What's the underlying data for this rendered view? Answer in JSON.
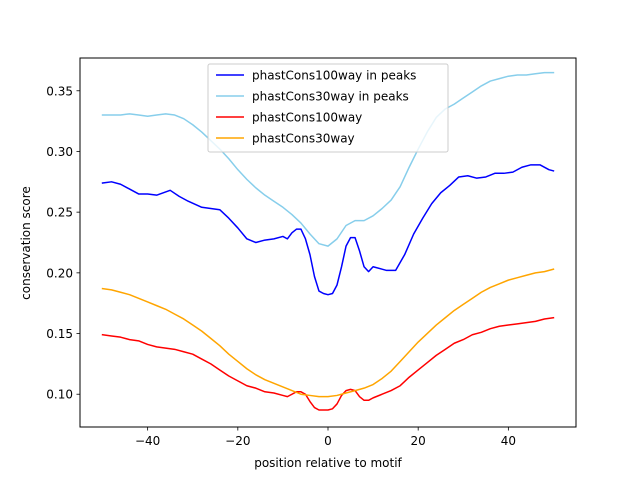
{
  "chart_data": {
    "type": "line",
    "title": "",
    "xlabel": "position relative to motif",
    "ylabel": "conservation score",
    "xlim": [
      -55,
      55
    ],
    "ylim": [
      0.073,
      0.377
    ],
    "xticks": [
      -40,
      -20,
      0,
      20,
      40
    ],
    "xtick_labels": [
      "−40",
      "−20",
      "0",
      "20",
      "40"
    ],
    "yticks": [
      0.1,
      0.15,
      0.2,
      0.25,
      0.3,
      0.35
    ],
    "ytick_labels": [
      "0.10",
      "0.15",
      "0.20",
      "0.25",
      "0.30",
      "0.35"
    ],
    "grid": false,
    "legend_position": "upper center",
    "series": [
      {
        "name": "phastCons100way in peaks",
        "color": "#0000ff",
        "points": [
          [
            -50,
            0.274
          ],
          [
            -48,
            0.275
          ],
          [
            -46,
            0.273
          ],
          [
            -44,
            0.269
          ],
          [
            -42,
            0.265
          ],
          [
            -40,
            0.265
          ],
          [
            -38,
            0.264
          ],
          [
            -35,
            0.268
          ],
          [
            -33,
            0.263
          ],
          [
            -31,
            0.259
          ],
          [
            -28,
            0.254
          ],
          [
            -26,
            0.253
          ],
          [
            -24,
            0.252
          ],
          [
            -22,
            0.245
          ],
          [
            -20,
            0.237
          ],
          [
            -18,
            0.228
          ],
          [
            -16,
            0.225
          ],
          [
            -14,
            0.227
          ],
          [
            -12,
            0.228
          ],
          [
            -10,
            0.23
          ],
          [
            -9,
            0.228
          ],
          [
            -8,
            0.233
          ],
          [
            -7,
            0.236
          ],
          [
            -6,
            0.236
          ],
          [
            -5,
            0.228
          ],
          [
            -4,
            0.215
          ],
          [
            -3,
            0.197
          ],
          [
            -2,
            0.185
          ],
          [
            -1,
            0.183
          ],
          [
            0,
            0.182
          ],
          [
            1,
            0.183
          ],
          [
            2,
            0.19
          ],
          [
            3,
            0.205
          ],
          [
            4,
            0.222
          ],
          [
            5,
            0.229
          ],
          [
            6,
            0.229
          ],
          [
            7,
            0.218
          ],
          [
            8,
            0.205
          ],
          [
            9,
            0.201
          ],
          [
            10,
            0.205
          ],
          [
            12,
            0.203
          ],
          [
            13,
            0.202
          ],
          [
            15,
            0.202
          ],
          [
            17,
            0.215
          ],
          [
            19,
            0.232
          ],
          [
            21,
            0.245
          ],
          [
            23,
            0.257
          ],
          [
            25,
            0.266
          ],
          [
            27,
            0.272
          ],
          [
            29,
            0.279
          ],
          [
            31,
            0.28
          ],
          [
            33,
            0.278
          ],
          [
            35,
            0.279
          ],
          [
            37,
            0.282
          ],
          [
            39,
            0.282
          ],
          [
            41,
            0.283
          ],
          [
            43,
            0.287
          ],
          [
            45,
            0.289
          ],
          [
            47,
            0.289
          ],
          [
            49,
            0.285
          ],
          [
            50,
            0.284
          ]
        ]
      },
      {
        "name": "phastCons30way in peaks",
        "color": "#87ceeb",
        "points": [
          [
            -50,
            0.33
          ],
          [
            -48,
            0.33
          ],
          [
            -46,
            0.33
          ],
          [
            -44,
            0.331
          ],
          [
            -42,
            0.33
          ],
          [
            -40,
            0.329
          ],
          [
            -38,
            0.33
          ],
          [
            -36,
            0.331
          ],
          [
            -34,
            0.33
          ],
          [
            -32,
            0.327
          ],
          [
            -30,
            0.322
          ],
          [
            -28,
            0.316
          ],
          [
            -26,
            0.309
          ],
          [
            -24,
            0.302
          ],
          [
            -22,
            0.294
          ],
          [
            -20,
            0.285
          ],
          [
            -18,
            0.277
          ],
          [
            -16,
            0.27
          ],
          [
            -14,
            0.264
          ],
          [
            -12,
            0.259
          ],
          [
            -10,
            0.254
          ],
          [
            -8,
            0.248
          ],
          [
            -6,
            0.241
          ],
          [
            -4,
            0.232
          ],
          [
            -2,
            0.224
          ],
          [
            0,
            0.222
          ],
          [
            2,
            0.228
          ],
          [
            4,
            0.239
          ],
          [
            6,
            0.243
          ],
          [
            8,
            0.243
          ],
          [
            10,
            0.247
          ],
          [
            12,
            0.253
          ],
          [
            14,
            0.26
          ],
          [
            16,
            0.271
          ],
          [
            18,
            0.287
          ],
          [
            20,
            0.302
          ],
          [
            22,
            0.316
          ],
          [
            24,
            0.328
          ],
          [
            26,
            0.335
          ],
          [
            28,
            0.339
          ],
          [
            30,
            0.344
          ],
          [
            32,
            0.349
          ],
          [
            34,
            0.354
          ],
          [
            36,
            0.358
          ],
          [
            38,
            0.36
          ],
          [
            40,
            0.362
          ],
          [
            42,
            0.363
          ],
          [
            44,
            0.363
          ],
          [
            46,
            0.364
          ],
          [
            48,
            0.365
          ],
          [
            50,
            0.365
          ]
        ]
      },
      {
        "name": "phastCons100way",
        "color": "#ff0000",
        "points": [
          [
            -50,
            0.149
          ],
          [
            -48,
            0.148
          ],
          [
            -46,
            0.147
          ],
          [
            -44,
            0.145
          ],
          [
            -42,
            0.144
          ],
          [
            -40,
            0.141
          ],
          [
            -38,
            0.139
          ],
          [
            -36,
            0.138
          ],
          [
            -34,
            0.137
          ],
          [
            -32,
            0.135
          ],
          [
            -30,
            0.133
          ],
          [
            -28,
            0.129
          ],
          [
            -26,
            0.125
          ],
          [
            -24,
            0.12
          ],
          [
            -22,
            0.115
          ],
          [
            -20,
            0.111
          ],
          [
            -18,
            0.107
          ],
          [
            -16,
            0.105
          ],
          [
            -14,
            0.102
          ],
          [
            -12,
            0.101
          ],
          [
            -10,
            0.099
          ],
          [
            -9,
            0.098
          ],
          [
            -8,
            0.1
          ],
          [
            -7,
            0.102
          ],
          [
            -6,
            0.102
          ],
          [
            -5,
            0.1
          ],
          [
            -4,
            0.094
          ],
          [
            -3,
            0.089
          ],
          [
            -2,
            0.087
          ],
          [
            0,
            0.087
          ],
          [
            1,
            0.088
          ],
          [
            2,
            0.092
          ],
          [
            3,
            0.099
          ],
          [
            4,
            0.103
          ],
          [
            5,
            0.104
          ],
          [
            6,
            0.103
          ],
          [
            7,
            0.098
          ],
          [
            8,
            0.095
          ],
          [
            9,
            0.095
          ],
          [
            10,
            0.097
          ],
          [
            12,
            0.1
          ],
          [
            14,
            0.103
          ],
          [
            16,
            0.107
          ],
          [
            18,
            0.114
          ],
          [
            20,
            0.12
          ],
          [
            22,
            0.126
          ],
          [
            24,
            0.132
          ],
          [
            26,
            0.137
          ],
          [
            28,
            0.142
          ],
          [
            30,
            0.145
          ],
          [
            32,
            0.149
          ],
          [
            34,
            0.151
          ],
          [
            36,
            0.154
          ],
          [
            38,
            0.156
          ],
          [
            40,
            0.157
          ],
          [
            42,
            0.158
          ],
          [
            44,
            0.159
          ],
          [
            46,
            0.16
          ],
          [
            48,
            0.162
          ],
          [
            50,
            0.163
          ]
        ]
      },
      {
        "name": "phastCons30way",
        "color": "#ffa500",
        "points": [
          [
            -50,
            0.187
          ],
          [
            -48,
            0.186
          ],
          [
            -46,
            0.184
          ],
          [
            -44,
            0.182
          ],
          [
            -42,
            0.179
          ],
          [
            -40,
            0.176
          ],
          [
            -38,
            0.173
          ],
          [
            -36,
            0.17
          ],
          [
            -34,
            0.166
          ],
          [
            -32,
            0.162
          ],
          [
            -30,
            0.157
          ],
          [
            -28,
            0.152
          ],
          [
            -26,
            0.146
          ],
          [
            -24,
            0.14
          ],
          [
            -22,
            0.133
          ],
          [
            -20,
            0.127
          ],
          [
            -18,
            0.121
          ],
          [
            -16,
            0.116
          ],
          [
            -14,
            0.112
          ],
          [
            -12,
            0.109
          ],
          [
            -10,
            0.106
          ],
          [
            -8,
            0.103
          ],
          [
            -6,
            0.1
          ],
          [
            -4,
            0.099
          ],
          [
            -2,
            0.098
          ],
          [
            0,
            0.098
          ],
          [
            2,
            0.099
          ],
          [
            4,
            0.101
          ],
          [
            6,
            0.103
          ],
          [
            8,
            0.105
          ],
          [
            10,
            0.108
          ],
          [
            12,
            0.113
          ],
          [
            14,
            0.119
          ],
          [
            16,
            0.127
          ],
          [
            18,
            0.135
          ],
          [
            20,
            0.143
          ],
          [
            22,
            0.15
          ],
          [
            24,
            0.157
          ],
          [
            26,
            0.163
          ],
          [
            28,
            0.169
          ],
          [
            30,
            0.174
          ],
          [
            32,
            0.179
          ],
          [
            34,
            0.184
          ],
          [
            36,
            0.188
          ],
          [
            38,
            0.191
          ],
          [
            40,
            0.194
          ],
          [
            42,
            0.196
          ],
          [
            44,
            0.198
          ],
          [
            46,
            0.2
          ],
          [
            48,
            0.201
          ],
          [
            50,
            0.203
          ]
        ]
      }
    ]
  }
}
